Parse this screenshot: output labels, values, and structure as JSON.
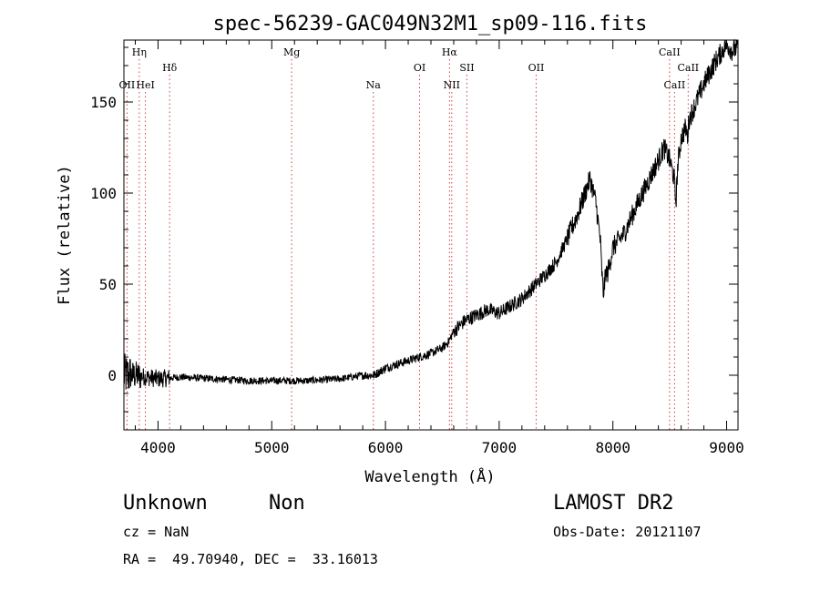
{
  "chart_data": {
    "type": "line",
    "title": "spec-56239-GAC049N32M1_sp09-116.fits",
    "xlabel": "Wavelength (Å)",
    "ylabel": "Flux (relative)",
    "xlim": [
      3700,
      9100
    ],
    "ylim": [
      -30,
      184
    ],
    "xticks": [
      4000,
      5000,
      6000,
      7000,
      8000,
      9000
    ],
    "yticks": [
      0,
      50,
      100,
      150
    ],
    "grid": false,
    "legend": "none",
    "line_color": "#000000",
    "marker_color": "#d04040",
    "series": [
      {
        "anchors": [
          [
            3700,
            0
          ],
          [
            3800,
            0
          ],
          [
            4000,
            -2
          ],
          [
            4200,
            -1
          ],
          [
            4500,
            -2
          ],
          [
            4800,
            -3
          ],
          [
            5000,
            -3
          ],
          [
            5300,
            -3
          ],
          [
            5600,
            -2
          ],
          [
            5800,
            0
          ],
          [
            5900,
            0
          ],
          [
            6000,
            4
          ],
          [
            6200,
            8
          ],
          [
            6400,
            12
          ],
          [
            6500,
            15
          ],
          [
            6550,
            18
          ],
          [
            6600,
            24
          ],
          [
            6700,
            30
          ],
          [
            6800,
            33
          ],
          [
            6900,
            36
          ],
          [
            7000,
            34
          ],
          [
            7200,
            42
          ],
          [
            7400,
            55
          ],
          [
            7500,
            62
          ],
          [
            7600,
            75
          ],
          [
            7700,
            90
          ],
          [
            7800,
            108
          ],
          [
            7850,
            95
          ],
          [
            7900,
            68
          ],
          [
            7950,
            55
          ],
          [
            8000,
            70
          ],
          [
            8100,
            78
          ],
          [
            8200,
            92
          ],
          [
            8300,
            105
          ],
          [
            8400,
            118
          ],
          [
            8450,
            125
          ],
          [
            8500,
            118
          ],
          [
            8550,
            105
          ],
          [
            8600,
            130
          ],
          [
            8700,
            145
          ],
          [
            8800,
            160
          ],
          [
            8900,
            172
          ],
          [
            9000,
            182
          ],
          [
            9050,
            178
          ],
          [
            9100,
            180
          ]
        ],
        "dips": [
          [
            7890,
            7940,
            -20
          ],
          [
            8540,
            8570,
            -12
          ],
          [
            8640,
            8670,
            -8
          ]
        ],
        "noise": [
          [
            3700,
            3760,
            12
          ],
          [
            3760,
            3850,
            8
          ],
          [
            3850,
            4100,
            5
          ],
          [
            4100,
            5800,
            2
          ],
          [
            5800,
            6600,
            2.5
          ],
          [
            6600,
            7600,
            4
          ],
          [
            7600,
            9100,
            6
          ]
        ]
      }
    ],
    "lines": [
      {
        "label": "Hη",
        "wavelength": 3835,
        "level": 0
      },
      {
        "label": "OII",
        "wavelength": 3727,
        "level": 2
      },
      {
        "label": "HeI",
        "wavelength": 3889,
        "level": 2
      },
      {
        "label": "Hδ",
        "wavelength": 4102,
        "level": 1
      },
      {
        "label": "Mg",
        "wavelength": 5175,
        "level": 0
      },
      {
        "label": "Na",
        "wavelength": 5893,
        "level": 2
      },
      {
        "label": "OI",
        "wavelength": 6300,
        "level": 1
      },
      {
        "label": "Hα",
        "wavelength": 6563,
        "level": 0
      },
      {
        "label": "NII",
        "wavelength": 6583,
        "level": 2
      },
      {
        "label": "SII",
        "wavelength": 6716,
        "level": 1
      },
      {
        "label": "OII",
        "wavelength": 7325,
        "level": 1
      },
      {
        "label": "CaII",
        "wavelength": 8498,
        "level": 0
      },
      {
        "label": "CaII",
        "wavelength": 8542,
        "level": 2
      },
      {
        "label": "CaII",
        "wavelength": 8662,
        "level": 1
      }
    ]
  },
  "info": {
    "class_label": "Unknown",
    "subclass_label": "Non",
    "survey": "LAMOST DR2",
    "cz": "cz = NaN",
    "obs_date": "Obs-Date: 20121107",
    "coords": "RA =  49.70940, DEC =  33.16013"
  }
}
